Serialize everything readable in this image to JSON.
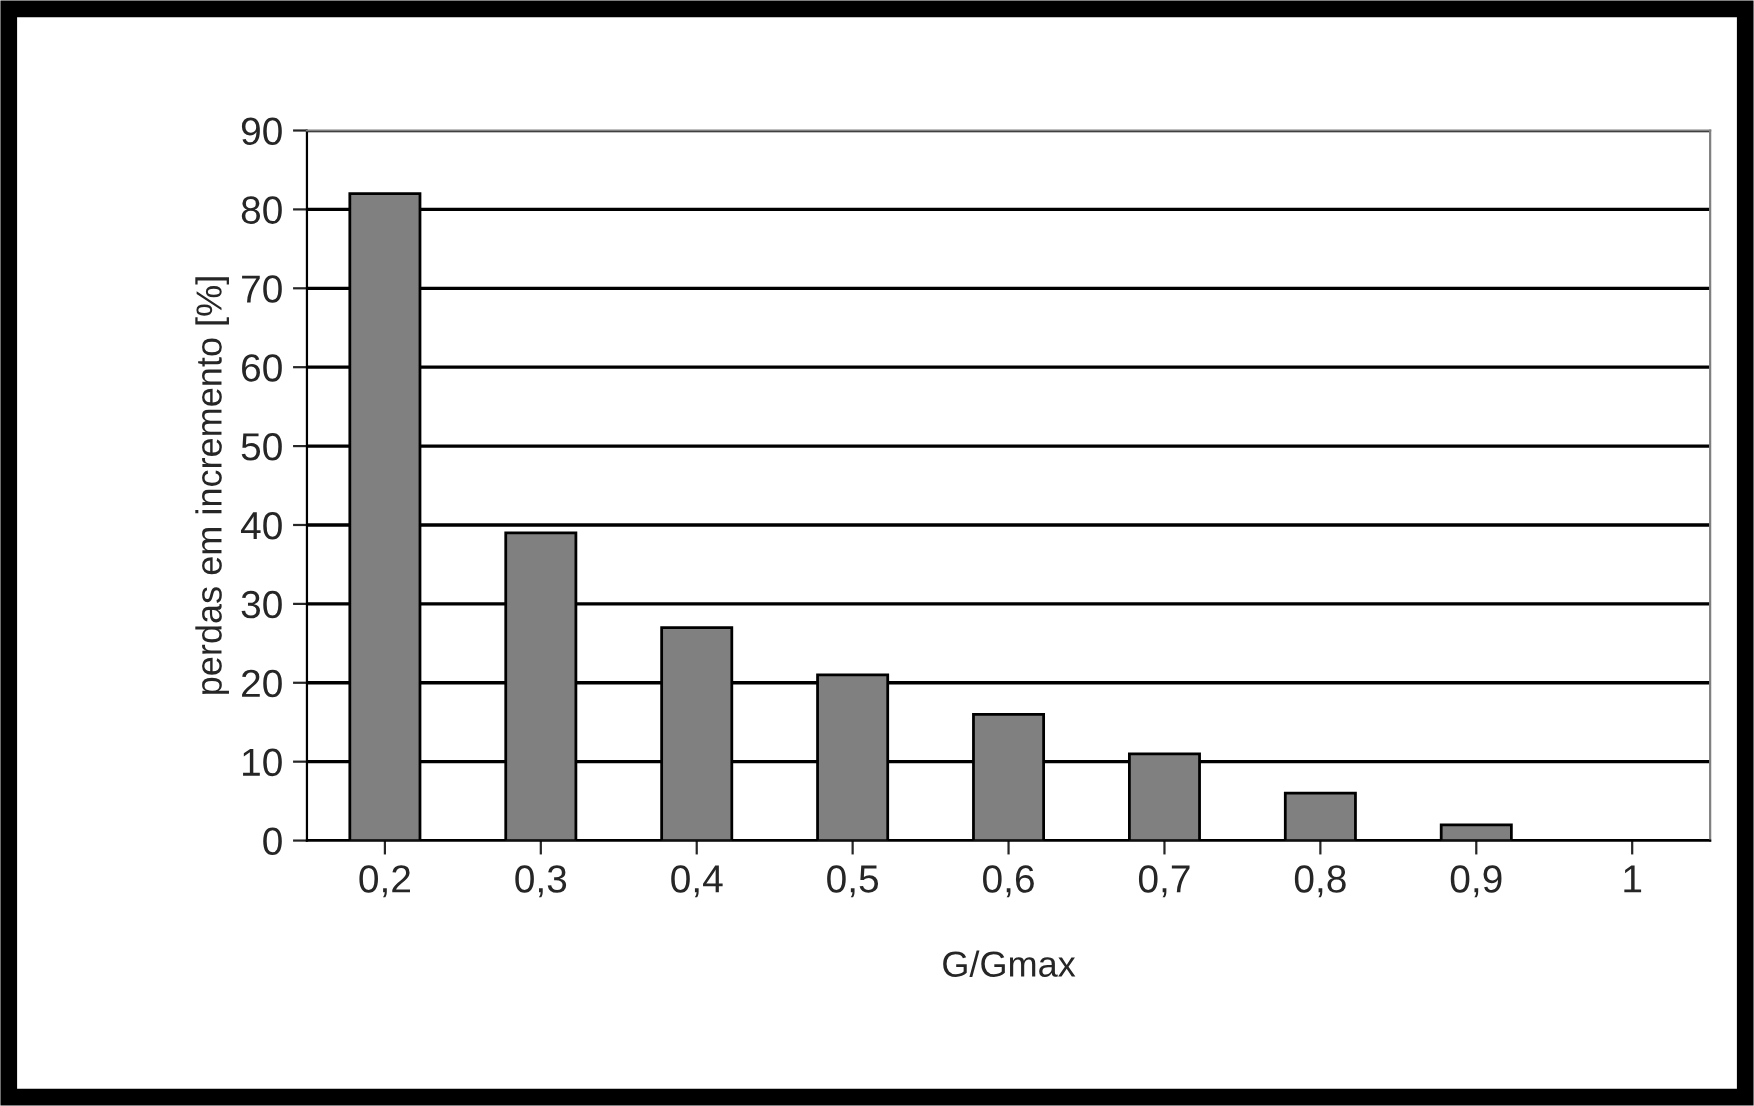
{
  "chart_data": {
    "type": "bar",
    "xlabel": "G/Gmax",
    "ylabel": "perdas em incremento [%]",
    "categories": [
      "0,2",
      "0,3",
      "0,4",
      "0,5",
      "0,6",
      "0,7",
      "0,8",
      "0,9",
      "1"
    ],
    "values": [
      82,
      39,
      27,
      21,
      16,
      11,
      6,
      2,
      0
    ],
    "color": "#808080",
    "ylim": [
      0,
      90
    ],
    "yticks": [
      0,
      10,
      20,
      30,
      40,
      50,
      60,
      70,
      80,
      90
    ],
    "grid": "y",
    "legend": false
  }
}
